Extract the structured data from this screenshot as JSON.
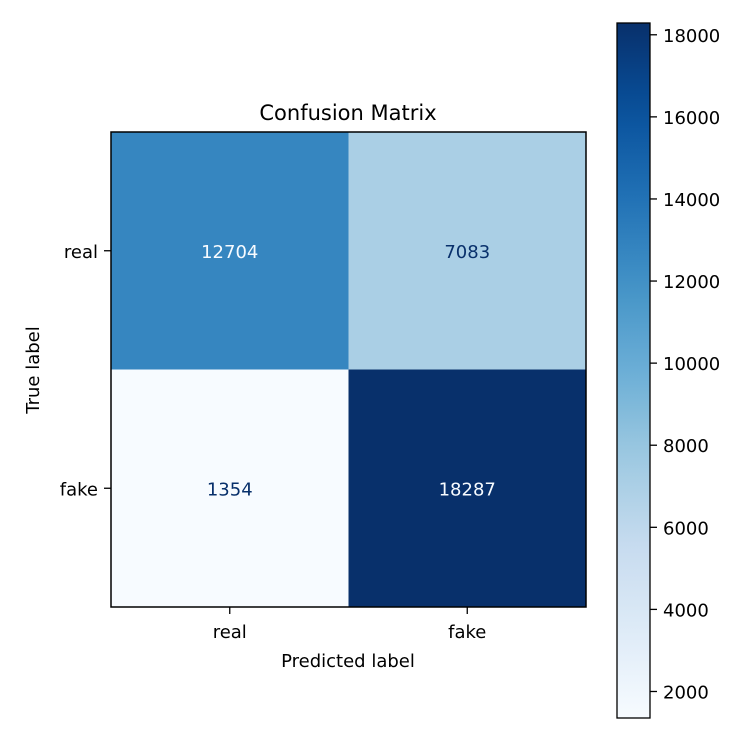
{
  "chart_data": {
    "type": "heatmap",
    "title": "Confusion Matrix",
    "xlabel": "Predicted label",
    "ylabel": "True label",
    "x_categories": [
      "real",
      "fake"
    ],
    "y_categories": [
      "real",
      "fake"
    ],
    "values": [
      [
        12704,
        7083
      ],
      [
        1354,
        18287
      ]
    ],
    "colormap": "Blues",
    "colorbar": {
      "range": [
        1354,
        18287
      ],
      "ticks": [
        2000,
        4000,
        6000,
        8000,
        10000,
        12000,
        14000,
        16000,
        18000
      ]
    },
    "grid": false,
    "colorbar_placement": "right"
  }
}
